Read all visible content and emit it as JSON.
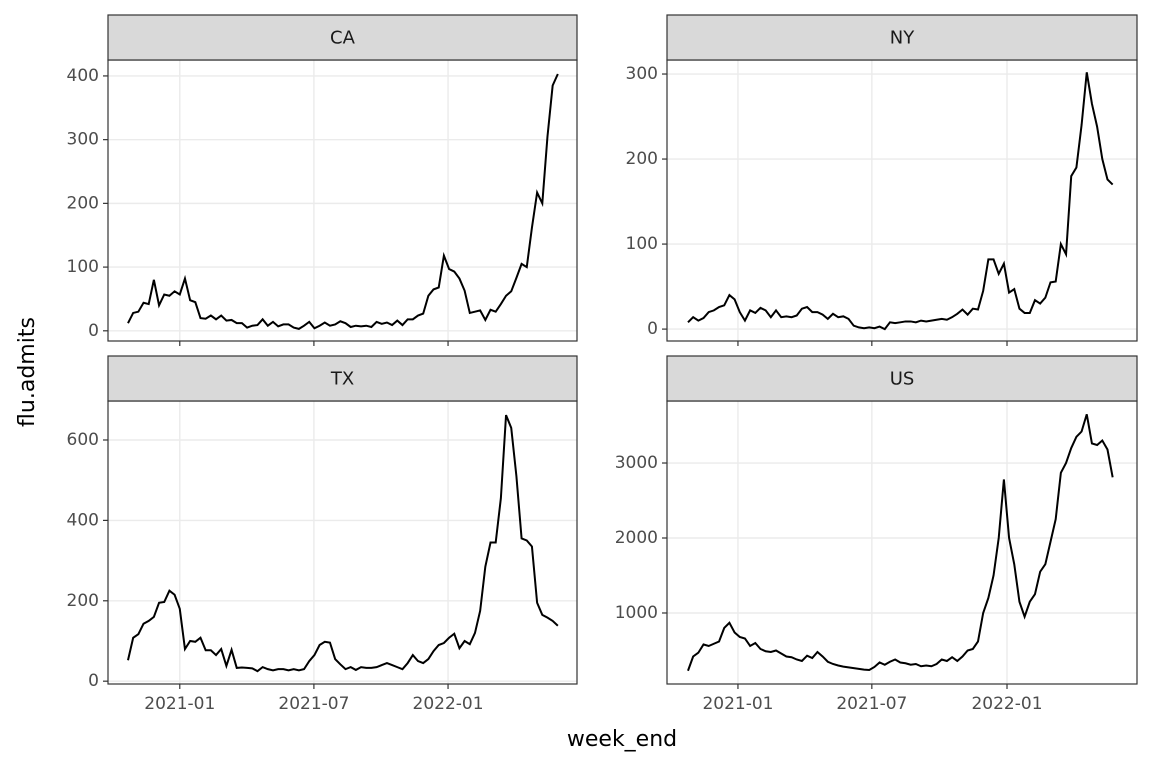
{
  "axis_labels": {
    "x": "week_end",
    "y": "flu.admits"
  },
  "chart_data": [
    {
      "type": "line",
      "title": "CA",
      "color": "#000000",
      "grid": true,
      "xtick_labels": false,
      "x": [
        0,
        1,
        2,
        3,
        4,
        5,
        6,
        7,
        8,
        9,
        10,
        11,
        12,
        13,
        14,
        15,
        16,
        17,
        18,
        19,
        20,
        21,
        22,
        23,
        24,
        25,
        26,
        27,
        28,
        29,
        30,
        31,
        32,
        33,
        34,
        35,
        36,
        37,
        38,
        39,
        40,
        41,
        42,
        43,
        44,
        45,
        46,
        47,
        48,
        49,
        50,
        51,
        52,
        53,
        54,
        55,
        56,
        57,
        58,
        59,
        60,
        61,
        62,
        63,
        64,
        65,
        66,
        67,
        68,
        69,
        70,
        71,
        72,
        73,
        74,
        75,
        76,
        77,
        78,
        79,
        80,
        81,
        82,
        83
      ],
      "values": [
        12,
        28,
        30,
        44,
        42,
        80,
        40,
        57,
        55,
        62,
        57,
        82,
        48,
        45,
        20,
        19,
        24,
        18,
        24,
        16,
        17,
        12,
        12,
        5,
        8,
        9,
        18,
        8,
        14,
        7,
        10,
        10,
        5,
        3,
        8,
        14,
        4,
        8,
        13,
        8,
        10,
        15,
        12,
        6,
        8,
        7,
        8,
        6,
        14,
        11,
        13,
        9,
        16,
        9,
        18,
        18,
        24,
        27,
        55,
        65,
        68,
        118,
        97,
        93,
        82,
        63,
        28,
        30,
        32,
        17,
        33,
        30,
        42,
        55,
        62,
        83,
        105,
        100,
        162,
        217,
        200,
        305,
        385,
        403
      ],
      "xlim": [
        -3.86,
        86.7
      ],
      "xticks": [
        {
          "value": 10.0,
          "label": "2021-01"
        },
        {
          "value": 35.9,
          "label": "2021-07"
        },
        {
          "value": 61.8,
          "label": "2022-01"
        }
      ],
      "ylim": [
        -16,
        425
      ],
      "yticks": [
        0,
        100,
        200,
        300,
        400
      ]
    },
    {
      "type": "line",
      "title": "NY",
      "color": "#000000",
      "grid": true,
      "xtick_labels": false,
      "x": [
        0,
        1,
        2,
        3,
        4,
        5,
        6,
        7,
        8,
        9,
        10,
        11,
        12,
        13,
        14,
        15,
        16,
        17,
        18,
        19,
        20,
        21,
        22,
        23,
        24,
        25,
        26,
        27,
        28,
        29,
        30,
        31,
        32,
        33,
        34,
        35,
        36,
        37,
        38,
        39,
        40,
        41,
        42,
        43,
        44,
        45,
        46,
        47,
        48,
        49,
        50,
        51,
        52,
        53,
        54,
        55,
        56,
        57,
        58,
        59,
        60,
        61,
        62,
        63,
        64,
        65,
        66,
        67,
        68,
        69,
        70,
        71,
        72,
        73,
        74,
        75,
        76,
        77,
        78,
        79,
        80,
        81,
        82
      ],
      "values": [
        8,
        14,
        10,
        13,
        20,
        22,
        26,
        28,
        40,
        35,
        20,
        10,
        22,
        19,
        25,
        22,
        14,
        22,
        14,
        15,
        14,
        16,
        24,
        26,
        20,
        20,
        17,
        12,
        18,
        14,
        15,
        12,
        4,
        2,
        1,
        2,
        1,
        3,
        0,
        8,
        7,
        8,
        9,
        9,
        8,
        10,
        9,
        10,
        11,
        12,
        11,
        14,
        18,
        23,
        17,
        24,
        23,
        45,
        82,
        82,
        65,
        77,
        43,
        47,
        24,
        19,
        19,
        34,
        30,
        37,
        55,
        56,
        100,
        88,
        180,
        190,
        240,
        302,
        265,
        238,
        200,
        176,
        170
      ],
      "xlim": [
        -4.05,
        86.7
      ],
      "xticks": [
        {
          "value": 9.65,
          "label": "2021-01"
        },
        {
          "value": 35.5,
          "label": "2021-07"
        },
        {
          "value": 61.6,
          "label": "2022-01"
        }
      ],
      "ylim": [
        -14,
        316.5
      ],
      "yticks": [
        0,
        100,
        200,
        300
      ]
    },
    {
      "type": "line",
      "title": "TX",
      "color": "#000000",
      "grid": true,
      "xtick_labels": true,
      "x": [
        0,
        1,
        2,
        3,
        4,
        5,
        6,
        7,
        8,
        9,
        10,
        11,
        12,
        13,
        14,
        15,
        16,
        17,
        18,
        19,
        20,
        21,
        22,
        23,
        24,
        25,
        26,
        27,
        28,
        29,
        30,
        31,
        32,
        33,
        34,
        35,
        36,
        37,
        38,
        39,
        40,
        41,
        42,
        43,
        44,
        45,
        46,
        47,
        48,
        49,
        50,
        51,
        52,
        53,
        54,
        55,
        56,
        57,
        58,
        59,
        60,
        61,
        62,
        63,
        64,
        65,
        66,
        67,
        68,
        69,
        70,
        71,
        72,
        73,
        74,
        75,
        76,
        77,
        78,
        79,
        80,
        81,
        82,
        83
      ],
      "values": [
        52,
        108,
        117,
        143,
        150,
        160,
        195,
        197,
        225,
        215,
        180,
        80,
        100,
        98,
        108,
        77,
        77,
        65,
        80,
        38,
        78,
        33,
        34,
        33,
        32,
        25,
        35,
        30,
        27,
        30,
        30,
        27,
        30,
        27,
        30,
        50,
        65,
        90,
        98,
        96,
        55,
        42,
        30,
        35,
        28,
        35,
        33,
        33,
        35,
        40,
        45,
        40,
        35,
        30,
        45,
        65,
        50,
        45,
        55,
        75,
        90,
        95,
        108,
        118,
        82,
        100,
        92,
        120,
        175,
        285,
        345,
        345,
        455,
        662,
        630,
        510,
        355,
        350,
        335,
        195,
        165,
        158,
        150,
        138
      ],
      "xlim": [
        -3.86,
        86.7
      ],
      "xticks": [
        {
          "value": 10.0,
          "label": "2021-01"
        },
        {
          "value": 35.9,
          "label": "2021-07"
        },
        {
          "value": 61.8,
          "label": "2022-01"
        }
      ],
      "ylim": [
        -7,
        697
      ],
      "yticks": [
        0,
        200,
        400,
        600
      ]
    },
    {
      "type": "line",
      "title": "US",
      "color": "#000000",
      "grid": true,
      "xtick_labels": true,
      "x": [
        0,
        1,
        2,
        3,
        4,
        5,
        6,
        7,
        8,
        9,
        10,
        11,
        12,
        13,
        14,
        15,
        16,
        17,
        18,
        19,
        20,
        21,
        22,
        23,
        24,
        25,
        26,
        27,
        28,
        29,
        30,
        31,
        32,
        33,
        34,
        35,
        36,
        37,
        38,
        39,
        40,
        41,
        42,
        43,
        44,
        45,
        46,
        47,
        48,
        49,
        50,
        51,
        52,
        53,
        54,
        55,
        56,
        57,
        58,
        59,
        60,
        61,
        62,
        63,
        64,
        65,
        66,
        67,
        68,
        69,
        70,
        71,
        72,
        73,
        74,
        75,
        76,
        77,
        78,
        79,
        80,
        81,
        82
      ],
      "values": [
        230,
        420,
        470,
        580,
        560,
        590,
        620,
        800,
        870,
        740,
        680,
        660,
        560,
        600,
        520,
        490,
        480,
        500,
        460,
        420,
        410,
        380,
        360,
        430,
        400,
        480,
        420,
        350,
        320,
        300,
        285,
        275,
        265,
        255,
        245,
        240,
        280,
        340,
        310,
        350,
        380,
        340,
        330,
        310,
        320,
        290,
        300,
        290,
        320,
        380,
        360,
        410,
        360,
        420,
        500,
        520,
        620,
        1000,
        1200,
        1500,
        2000,
        2780,
        2000,
        1650,
        1150,
        950,
        1150,
        1250,
        1550,
        1650,
        1950,
        2250,
        2870,
        3000,
        3200,
        3350,
        3420,
        3650,
        3260,
        3240,
        3300,
        3180,
        2810
      ],
      "xlim": [
        -4.05,
        86.7
      ],
      "xticks": [
        {
          "value": 9.65,
          "label": "2021-01"
        },
        {
          "value": 35.5,
          "label": "2021-07"
        },
        {
          "value": 61.6,
          "label": "2022-01"
        }
      ],
      "ylim": [
        53,
        3827
      ],
      "yticks": [
        1000,
        2000,
        3000
      ]
    }
  ]
}
